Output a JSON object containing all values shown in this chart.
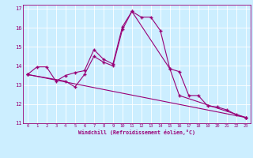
{
  "xlabel": "Windchill (Refroidissement éolien,°C)",
  "bg_color": "#cceeff",
  "line_color": "#990077",
  "xlim": [
    -0.5,
    23.5
  ],
  "ylim": [
    11,
    17.2
  ],
  "yticks": [
    11,
    12,
    13,
    14,
    15,
    16,
    17
  ],
  "xticks": [
    0,
    1,
    2,
    3,
    4,
    5,
    6,
    7,
    8,
    9,
    10,
    11,
    12,
    13,
    14,
    15,
    16,
    17,
    18,
    19,
    20,
    21,
    22,
    23
  ],
  "curve1_x": [
    0,
    1,
    2,
    3,
    4,
    5,
    6,
    7,
    8,
    9,
    10,
    11,
    12,
    13,
    14,
    15,
    16,
    17,
    18,
    19,
    20,
    21,
    22,
    23
  ],
  "curve1_y": [
    13.55,
    13.95,
    13.95,
    13.2,
    13.5,
    13.65,
    13.75,
    14.85,
    14.35,
    14.1,
    16.05,
    16.85,
    16.55,
    16.55,
    15.85,
    13.85,
    13.7,
    12.45,
    12.45,
    11.9,
    11.85,
    11.7,
    11.45,
    11.3
  ],
  "curve2_x": [
    0,
    4,
    5,
    6,
    7,
    8,
    9,
    10,
    11,
    15,
    16,
    23
  ],
  "curve2_y": [
    13.55,
    13.2,
    12.9,
    13.55,
    14.5,
    14.2,
    14.0,
    15.9,
    16.85,
    13.85,
    12.45,
    11.3
  ],
  "curve3_x": [
    0,
    23
  ],
  "curve3_y": [
    13.55,
    11.3
  ]
}
